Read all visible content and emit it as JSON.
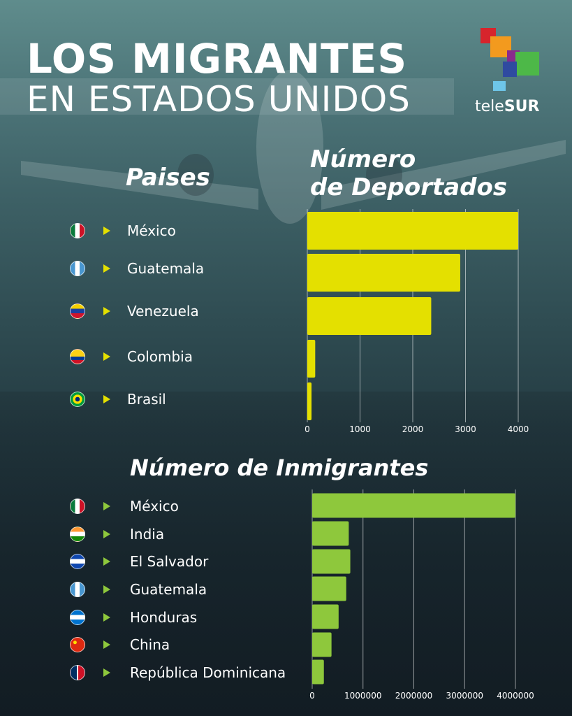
{
  "title_line1": "LOS MIGRANTES",
  "title_line2": "EN ESTADOS UNIDOS",
  "logo": {
    "text_light": "tele",
    "text_bold": "SUR"
  },
  "colors": {
    "deportados_bar": "#e4e000",
    "inmigrantes_bar": "#8ec83c"
  },
  "chart_data": [
    {
      "type": "bar",
      "orientation": "horizontal",
      "title": "Número de Deportados",
      "category_header": "Paises",
      "categories": [
        "México",
        "Guatemala",
        "Venezuela",
        "Colombia",
        "Brasil"
      ],
      "values": [
        4000,
        2900,
        2350,
        150,
        80
      ],
      "xlim": [
        0,
        4000
      ],
      "ticks": [
        "0",
        "1000",
        "2000",
        "3000",
        "4000"
      ],
      "tick_values": [
        0,
        1000,
        2000,
        3000,
        4000
      ],
      "grid": true
    },
    {
      "type": "bar",
      "orientation": "horizontal",
      "title": "Número de Inmigrantes",
      "categories": [
        "México",
        "India",
        "El Salvador",
        "Guatemala",
        "Honduras",
        "China",
        "República Dominicana"
      ],
      "values": [
        4000000,
        720000,
        750000,
        670000,
        520000,
        380000,
        230000
      ],
      "xlim": [
        0,
        4000000
      ],
      "ticks": [
        "0",
        "1000000",
        "2000000",
        "3000000",
        "4000000"
      ],
      "tick_values": [
        0,
        1000000,
        2000000,
        3000000,
        4000000
      ],
      "grid": true
    }
  ],
  "flags": {
    "deportados": [
      "mexico-flag-icon",
      "guatemala-flag-icon",
      "venezuela-flag-icon",
      "colombia-flag-icon",
      "brazil-flag-icon"
    ],
    "inmigrantes": [
      "mexico-flag-icon",
      "india-flag-icon",
      "el-salvador-flag-icon",
      "guatemala-flag-icon",
      "honduras-flag-icon",
      "china-flag-icon",
      "dominican-republic-flag-icon"
    ]
  }
}
